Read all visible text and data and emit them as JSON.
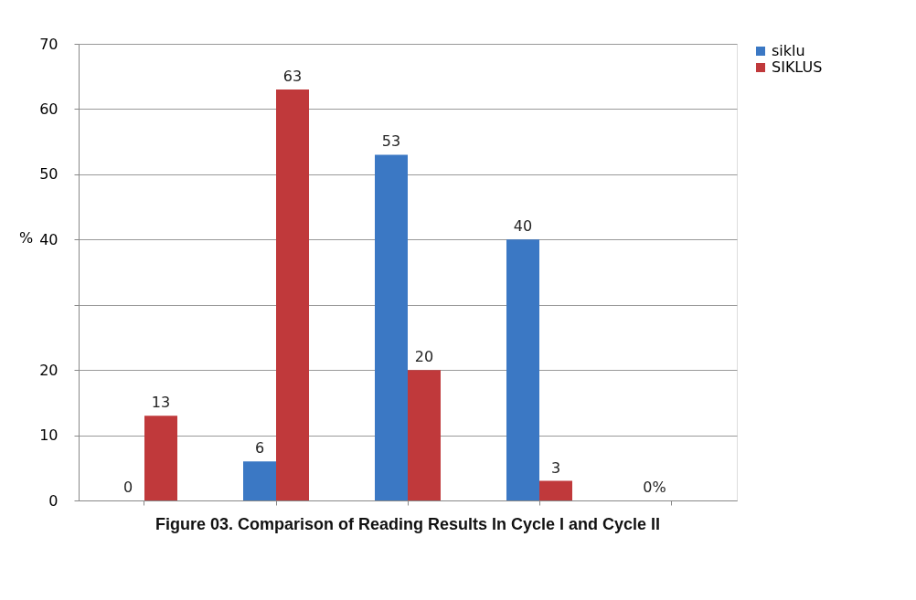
{
  "chart_data": {
    "type": "bar",
    "categories": [
      null,
      null,
      null,
      null,
      null
    ],
    "series": [
      {
        "name": "siklu",
        "color": "#3b78c4",
        "values": [
          0,
          6,
          53,
          40,
          0
        ],
        "value_labels": [
          "0",
          "6",
          "53",
          "40",
          "0%"
        ]
      },
      {
        "name": "SIKLUS",
        "color": "#c0393b",
        "values": [
          13,
          63,
          20,
          3,
          null
        ],
        "value_labels": [
          "13",
          "63",
          "20",
          "3",
          null
        ]
      }
    ],
    "ylabel": "%",
    "ylim": [
      0,
      70
    ],
    "yticks": [
      0,
      10,
      20,
      {
        "value": 30,
        "label": null
      },
      40,
      50,
      60,
      70
    ],
    "grid": "y",
    "legend": "right",
    "tick_labels": "y",
    "annotations": [
      "Figure 03. Comparison of Reading Results In Cycle I and Cycle II"
    ]
  }
}
